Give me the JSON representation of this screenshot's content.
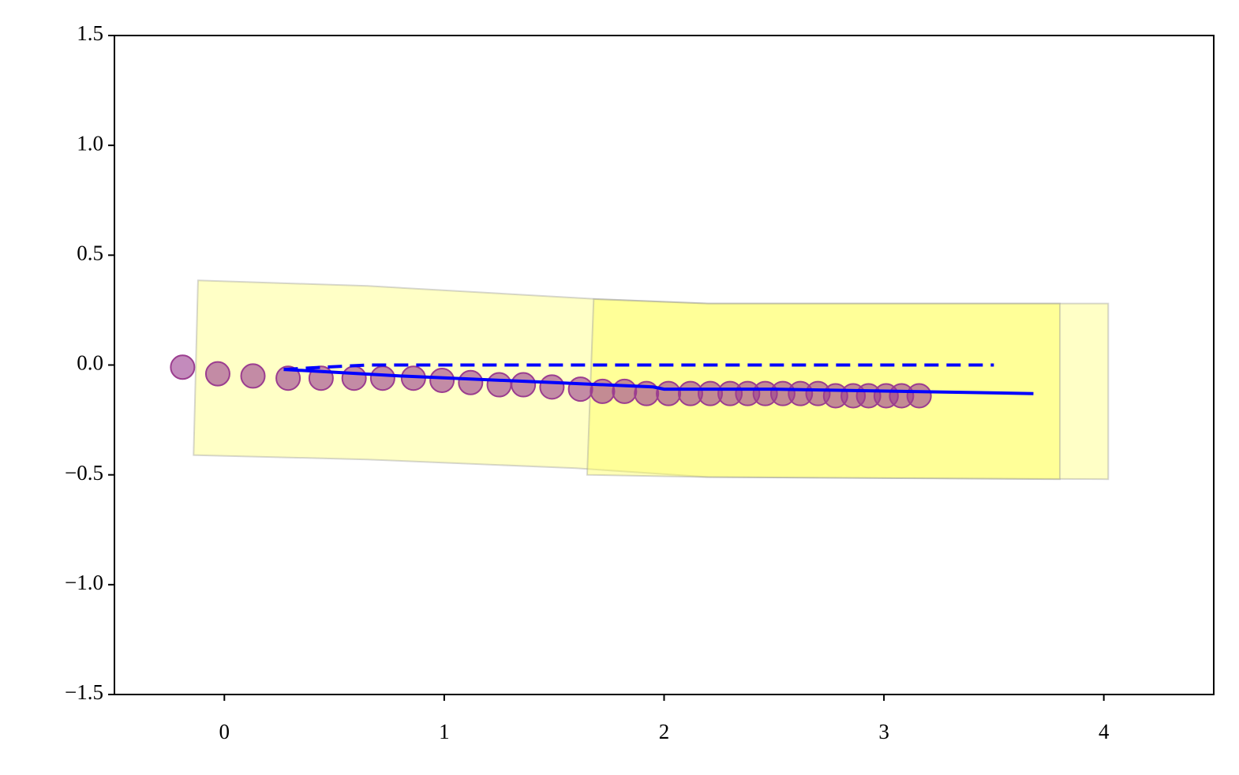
{
  "chart_data": {
    "type": "scatter",
    "xlim": [
      -0.5,
      4.5
    ],
    "ylim": [
      -1.5,
      1.5
    ],
    "xticks": [
      0,
      1,
      2,
      3,
      4
    ],
    "yticks": [
      {
        "value": -1.5,
        "label": "−1.5"
      },
      {
        "value": -1.0,
        "label": "−1.0"
      },
      {
        "value": -0.5,
        "label": "−0.5"
      },
      {
        "value": 0,
        "label": "0.0"
      },
      0.5,
      {
        "value": 1.0,
        "label": "1.0"
      },
      1.5
    ],
    "series": [
      {
        "mark": "polygon",
        "color": "#ffff80",
        "x": [
          -0.12,
          0.65,
          1.7,
          2.2,
          4.02,
          4.02,
          2.2,
          1.6,
          0.65,
          -0.14
        ],
        "values": [
          0.385,
          0.36,
          0.3,
          0.28,
          0.28,
          -0.52,
          -0.51,
          -0.47,
          -0.43,
          -0.41
        ]
      },
      {
        "mark": "polygon",
        "color": "#ffff60",
        "x": [
          1.68,
          2.2,
          3.8,
          3.8,
          2.2,
          1.65
        ],
        "values": [
          0.3,
          0.28,
          0.28,
          -0.52,
          -0.51,
          -0.5
        ]
      },
      {
        "mark": "circle",
        "color": "#9b3d8f",
        "x": [
          -0.19,
          -0.03,
          0.13,
          0.29,
          0.44,
          0.59,
          0.72,
          0.86,
          0.99,
          1.12,
          1.25,
          1.36,
          1.49,
          1.62,
          1.72,
          1.82,
          1.92,
          2.02,
          2.12,
          2.21,
          2.3,
          2.38,
          2.46,
          2.54,
          2.62,
          2.7,
          2.78,
          2.86,
          2.93,
          3.01,
          3.08,
          3.16
        ],
        "values": [
          -0.01,
          -0.04,
          -0.05,
          -0.06,
          -0.06,
          -0.06,
          -0.06,
          -0.06,
          -0.07,
          -0.08,
          -0.09,
          -0.09,
          -0.1,
          -0.11,
          -0.12,
          -0.12,
          -0.13,
          -0.13,
          -0.13,
          -0.13,
          -0.13,
          -0.13,
          -0.13,
          -0.13,
          -0.13,
          -0.13,
          -0.14,
          -0.14,
          -0.14,
          -0.14,
          -0.14,
          -0.14
        ]
      },
      {
        "mark": "line",
        "linestyle": "dashed",
        "color": "#0000ff",
        "x": [
          0.27,
          0.45,
          0.65,
          3.5
        ],
        "values": [
          -0.02,
          -0.01,
          0,
          0
        ]
      },
      {
        "mark": "line",
        "linestyle": "solid",
        "color": "#0000ff",
        "x": [
          0.27,
          0.8,
          1.5,
          1.95,
          2.0,
          2.5,
          3.68
        ],
        "values": [
          -0.02,
          -0.05,
          -0.08,
          -0.1,
          -0.11,
          -0.11,
          -0.13
        ]
      }
    ]
  }
}
